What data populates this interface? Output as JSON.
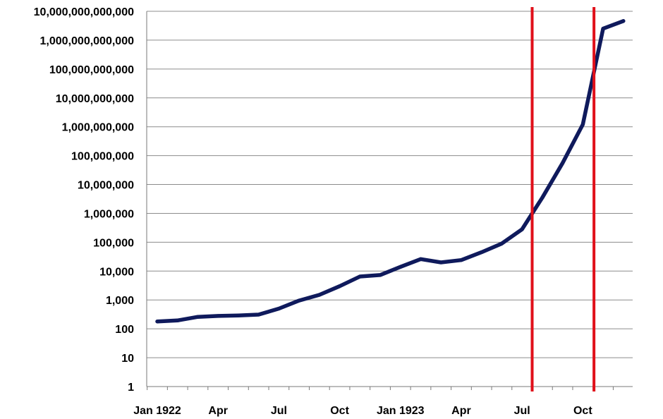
{
  "chart_data": {
    "type": "line",
    "title": "",
    "xlabel": "",
    "ylabel": "",
    "yscale": "log",
    "ylim": [
      1,
      10000000000000
    ],
    "grid": "horizontal",
    "y_ticks": [
      {
        "value": 1,
        "label": "1"
      },
      {
        "value": 10,
        "label": "10"
      },
      {
        "value": 100,
        "label": "100"
      },
      {
        "value": 1000,
        "label": "1,000"
      },
      {
        "value": 10000,
        "label": "10,000"
      },
      {
        "value": 100000,
        "label": "100,000"
      },
      {
        "value": 1000000,
        "label": "1,000,000"
      },
      {
        "value": 10000000,
        "label": "10,000,000"
      },
      {
        "value": 100000000,
        "label": "100,000,000"
      },
      {
        "value": 1000000000,
        "label": "1,000,000,000"
      },
      {
        "value": 10000000000,
        "label": "10,000,000,000"
      },
      {
        "value": 100000000000,
        "label": "100,000,000,000"
      },
      {
        "value": 1000000000000,
        "label": "1,000,000,000,000"
      },
      {
        "value": 10000000000000,
        "label": "10,000,000,000,000"
      }
    ],
    "x_ticks": [
      {
        "month": 0,
        "label": "Jan 1922"
      },
      {
        "month": 3,
        "label": "Apr"
      },
      {
        "month": 6,
        "label": "Jul"
      },
      {
        "month": 9,
        "label": "Oct"
      },
      {
        "month": 12,
        "label": "Jan 1923"
      },
      {
        "month": 15,
        "label": "Apr"
      },
      {
        "month": 18,
        "label": "Jul"
      },
      {
        "month": 21,
        "label": "Oct"
      }
    ],
    "series": [
      {
        "color": "#0f1a5c",
        "x": [
          0,
          1,
          2,
          3,
          4,
          5,
          6,
          7,
          8,
          9,
          10,
          11,
          12,
          13,
          14,
          15,
          16,
          17,
          18,
          19,
          20,
          21,
          22,
          23
        ],
        "values": [
          180,
          195,
          260,
          280,
          290,
          310,
          500,
          950,
          1500,
          3000,
          6500,
          7300,
          14000,
          26000,
          20000,
          24000,
          45000,
          90000,
          280000,
          3500000,
          55000000,
          1200000000,
          2500000000000,
          4600000000000
        ]
      }
    ],
    "annotations": [
      {
        "type": "vertical-line",
        "month": 18.5,
        "color": "#e0101a"
      },
      {
        "type": "vertical-line",
        "month": 21.55,
        "color": "#e0101a"
      }
    ]
  }
}
